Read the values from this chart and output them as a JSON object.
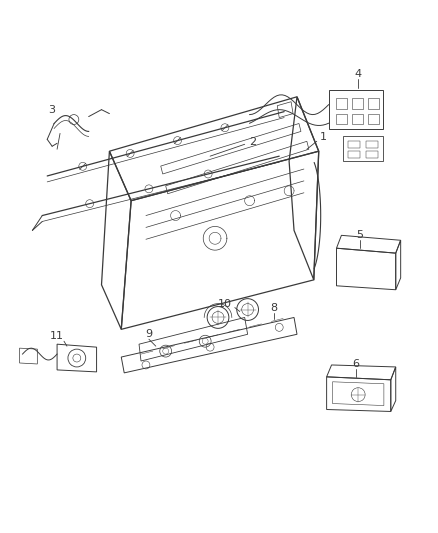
{
  "background_color": "#ffffff",
  "line_color": "#3a3a3a",
  "label_color": "#3a3a3a",
  "fig_width": 4.38,
  "fig_height": 5.33,
  "dpi": 100
}
